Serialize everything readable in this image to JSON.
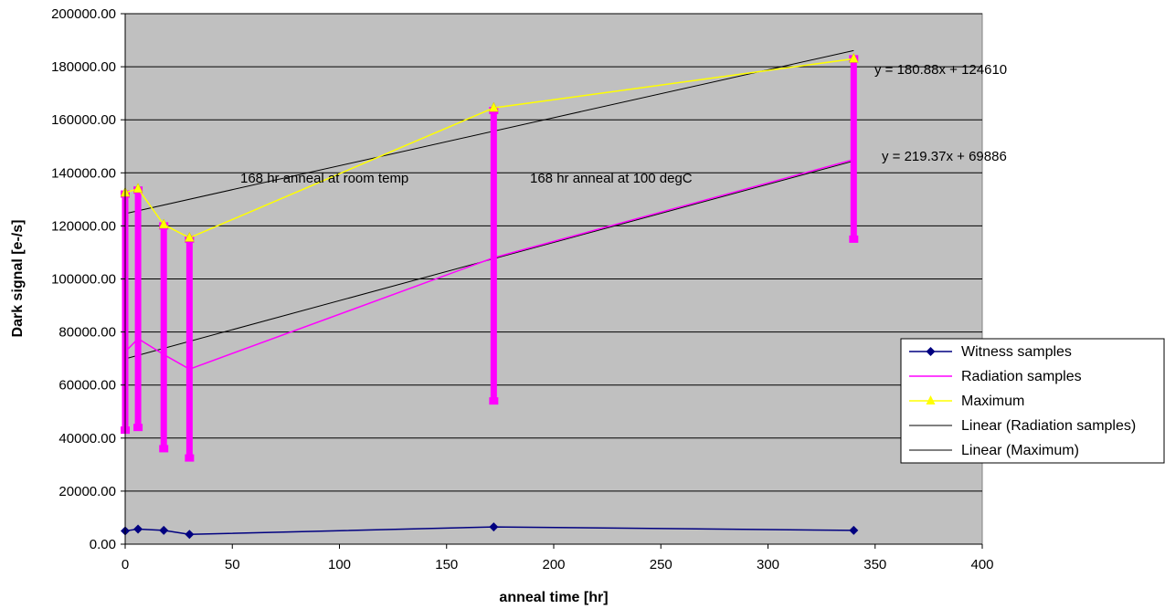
{
  "chart_data": {
    "type": "line",
    "title": "",
    "xlabel": "anneal time [hr]",
    "ylabel": "Dark signal [e-/s]",
    "xlim": [
      0,
      400
    ],
    "ylim": [
      0,
      200000
    ],
    "x_ticks": [
      "0",
      "50",
      "100",
      "150",
      "200",
      "250",
      "300",
      "350",
      "400"
    ],
    "y_ticks": [
      "0.00",
      "20000.00",
      "40000.00",
      "60000.00",
      "80000.00",
      "100000.00",
      "120000.00",
      "140000.00",
      "160000.00",
      "180000.00",
      "200000.00"
    ],
    "grid": "horizontal",
    "plot_background": "#c0c0c0",
    "legend_position": "right",
    "series": [
      {
        "name": "Witness samples",
        "color": "#000080",
        "marker": "diamond",
        "x": [
          0,
          6,
          18,
          30,
          172,
          340
        ],
        "y": [
          5000,
          5700,
          5200,
          3700,
          6500,
          5200
        ]
      },
      {
        "name": "Radiation samples",
        "color": "#ff00ff",
        "marker": "none",
        "x": [
          0,
          6,
          18,
          30,
          172,
          340
        ],
        "y": [
          72500,
          77500,
          71500,
          66000,
          108000,
          145000
        ],
        "error_low": [
          43000,
          44000,
          36000,
          32500,
          54000,
          115000
        ],
        "error_high": [
          132000,
          133500,
          120000,
          115000,
          163500,
          183000
        ]
      },
      {
        "name": "Maximum",
        "color": "#ffff00",
        "marker": "triangle",
        "x": [
          0,
          6,
          18,
          30,
          172,
          340
        ],
        "y": [
          132500,
          134000,
          120500,
          115500,
          164500,
          183000
        ]
      },
      {
        "name": "Linear (Radiation samples)",
        "color": "#000000",
        "type": "trendline",
        "slope": 219.37,
        "intercept": 69886,
        "x_range": [
          0,
          340
        ]
      },
      {
        "name": "Linear (Maximum)",
        "color": "#000000",
        "type": "trendline",
        "slope": 180.88,
        "intercept": 124610,
        "x_range": [
          0,
          340
        ]
      }
    ],
    "annotations": {
      "eq_max": "y = 180.88x + 124610",
      "eq_rad": "y = 219.37x + 69886",
      "room_temp": "168 hr anneal at room temp",
      "hot": "168 hr anneal at 100 degC"
    }
  }
}
